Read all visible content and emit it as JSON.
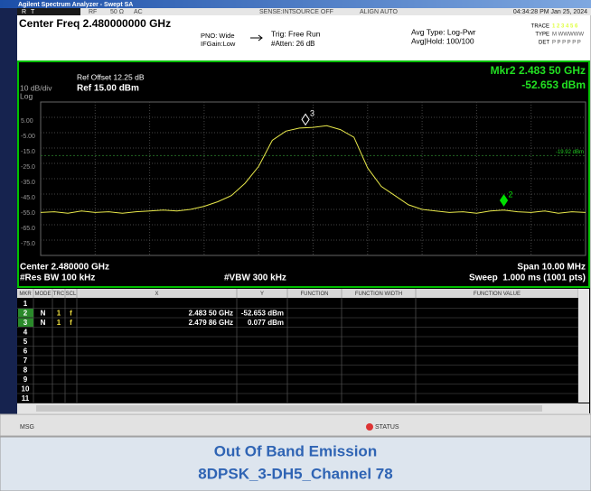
{
  "window_title": "Agilent Spectrum Analyzer - Swept SA",
  "status_strip": {
    "mode": "R",
    "trig": "T",
    "rf": "RF",
    "impedance": "50 Ω",
    "coupling": "AC",
    "sense": "SENSE:INT",
    "source": "SOURCE OFF",
    "align": "ALIGN AUTO",
    "datetime": "04:34:28 PM Jan 25, 2024"
  },
  "header": {
    "center_freq": "Center Freq 2.480000000 GHz",
    "pno": "PNO: Wide",
    "ifgain": "IFGain:Low",
    "trig": "Trig: Free Run",
    "atten": "#Atten: 26 dB",
    "avg_type": "Avg Type: Log-Pwr",
    "avg_hold": "Avg|Hold: 100/100",
    "trace_label": "TRACE",
    "trace_numbers": "1 2 3 4 5 6",
    "type_label": "TYPE",
    "type_value": "M WWWWW",
    "det_label": "DET",
    "det_value": "P P P P P P"
  },
  "chart_data": {
    "type": "line",
    "ref_offset": "Ref Offset 12.25 dB",
    "scale": "10 dB/div",
    "ref_level": "Ref 15.00 dBm",
    "scale_type": "Log",
    "marker_readout_freq": "Mkr2 2.483 50 GHz",
    "marker_readout_amp": "-52.653 dBm",
    "display_line": -19.92,
    "display_line_label": "-19.92 dBm",
    "xlim": [
      2.475,
      2.485
    ],
    "ylim": [
      -85,
      15
    ],
    "yticks": [
      {
        "value": 5,
        "label": "5.00"
      },
      {
        "value": -5,
        "label": "-5.00"
      },
      {
        "value": -15,
        "label": "-15.0"
      },
      {
        "value": -25,
        "label": "-25.0"
      },
      {
        "value": -35,
        "label": "-35.0"
      },
      {
        "value": -45,
        "label": "-45.0"
      },
      {
        "value": -55,
        "label": "-55.0"
      },
      {
        "value": -65,
        "label": "-65.0"
      },
      {
        "value": -75,
        "label": "-75.0"
      }
    ],
    "x": [
      2.475,
      2.47525,
      2.4755,
      2.47575,
      2.476,
      2.47625,
      2.4765,
      2.47675,
      2.477,
      2.47725,
      2.4775,
      2.47775,
      2.478,
      2.47825,
      2.4785,
      2.47875,
      2.479,
      2.47925,
      2.4795,
      2.47975,
      2.48,
      2.48025,
      2.4805,
      2.48075,
      2.481,
      2.48125,
      2.4815,
      2.48175,
      2.482,
      2.48225,
      2.4825,
      2.48275,
      2.483,
      2.48325,
      2.4835,
      2.48375,
      2.484,
      2.48425,
      2.4845,
      2.48475,
      2.485
    ],
    "values": [
      -57,
      -56.5,
      -57.5,
      -56,
      -57,
      -56.5,
      -57.5,
      -56.5,
      -56,
      -55.5,
      -56,
      -55,
      -53,
      -50,
      -46,
      -38,
      -27,
      -10,
      -4,
      -2,
      -1.5,
      -0.5,
      -3,
      -8,
      -28,
      -40,
      -46,
      -52,
      -55,
      -56,
      -57,
      -56.5,
      -57.5,
      -56,
      -55.5,
      -56.5,
      -57,
      -56,
      -57.5,
      -56.5,
      -57
    ],
    "color": "#e8e84a",
    "markers": [
      {
        "label": "3",
        "x": 2.47986,
        "y": 0.077,
        "color": "#ffffff"
      },
      {
        "label": "2",
        "x": 2.4835,
        "y": -52.653,
        "color": "#00e000"
      }
    ],
    "footer": {
      "center": "Center 2.480000 GHz",
      "rbw": "#Res BW 100 kHz",
      "vbw": "#VBW 300 kHz",
      "span": "Span 10.00 MHz",
      "sweep": "Sweep  1.000 ms (1001 pts)"
    }
  },
  "marker_table": {
    "columns": [
      "MKR",
      "MODE",
      "TRC",
      "SCL",
      "X",
      "Y",
      "FUNCTION",
      "FUNCTION WIDTH",
      "FUNCTION VALUE"
    ],
    "rows": [
      {
        "mkr": "1"
      },
      {
        "mkr": "2",
        "mode": "N",
        "trc": "1",
        "scl": "f",
        "x": "2.483 50 GHz",
        "y": "-52.653 dBm"
      },
      {
        "mkr": "3",
        "mode": "N",
        "trc": "1",
        "scl": "f",
        "x": "2.479 86 GHz",
        "y": "0.077 dBm"
      },
      {
        "mkr": "4"
      },
      {
        "mkr": "5"
      },
      {
        "mkr": "6"
      },
      {
        "mkr": "7"
      },
      {
        "mkr": "8"
      },
      {
        "mkr": "9"
      },
      {
        "mkr": "10"
      },
      {
        "mkr": "11"
      }
    ]
  },
  "status_bar": {
    "msg": "MSG",
    "status": "STATUS"
  },
  "caption": {
    "line1": "Out Of Band Emission",
    "line2": "8DPSK_3-DH5_Channel 78"
  }
}
